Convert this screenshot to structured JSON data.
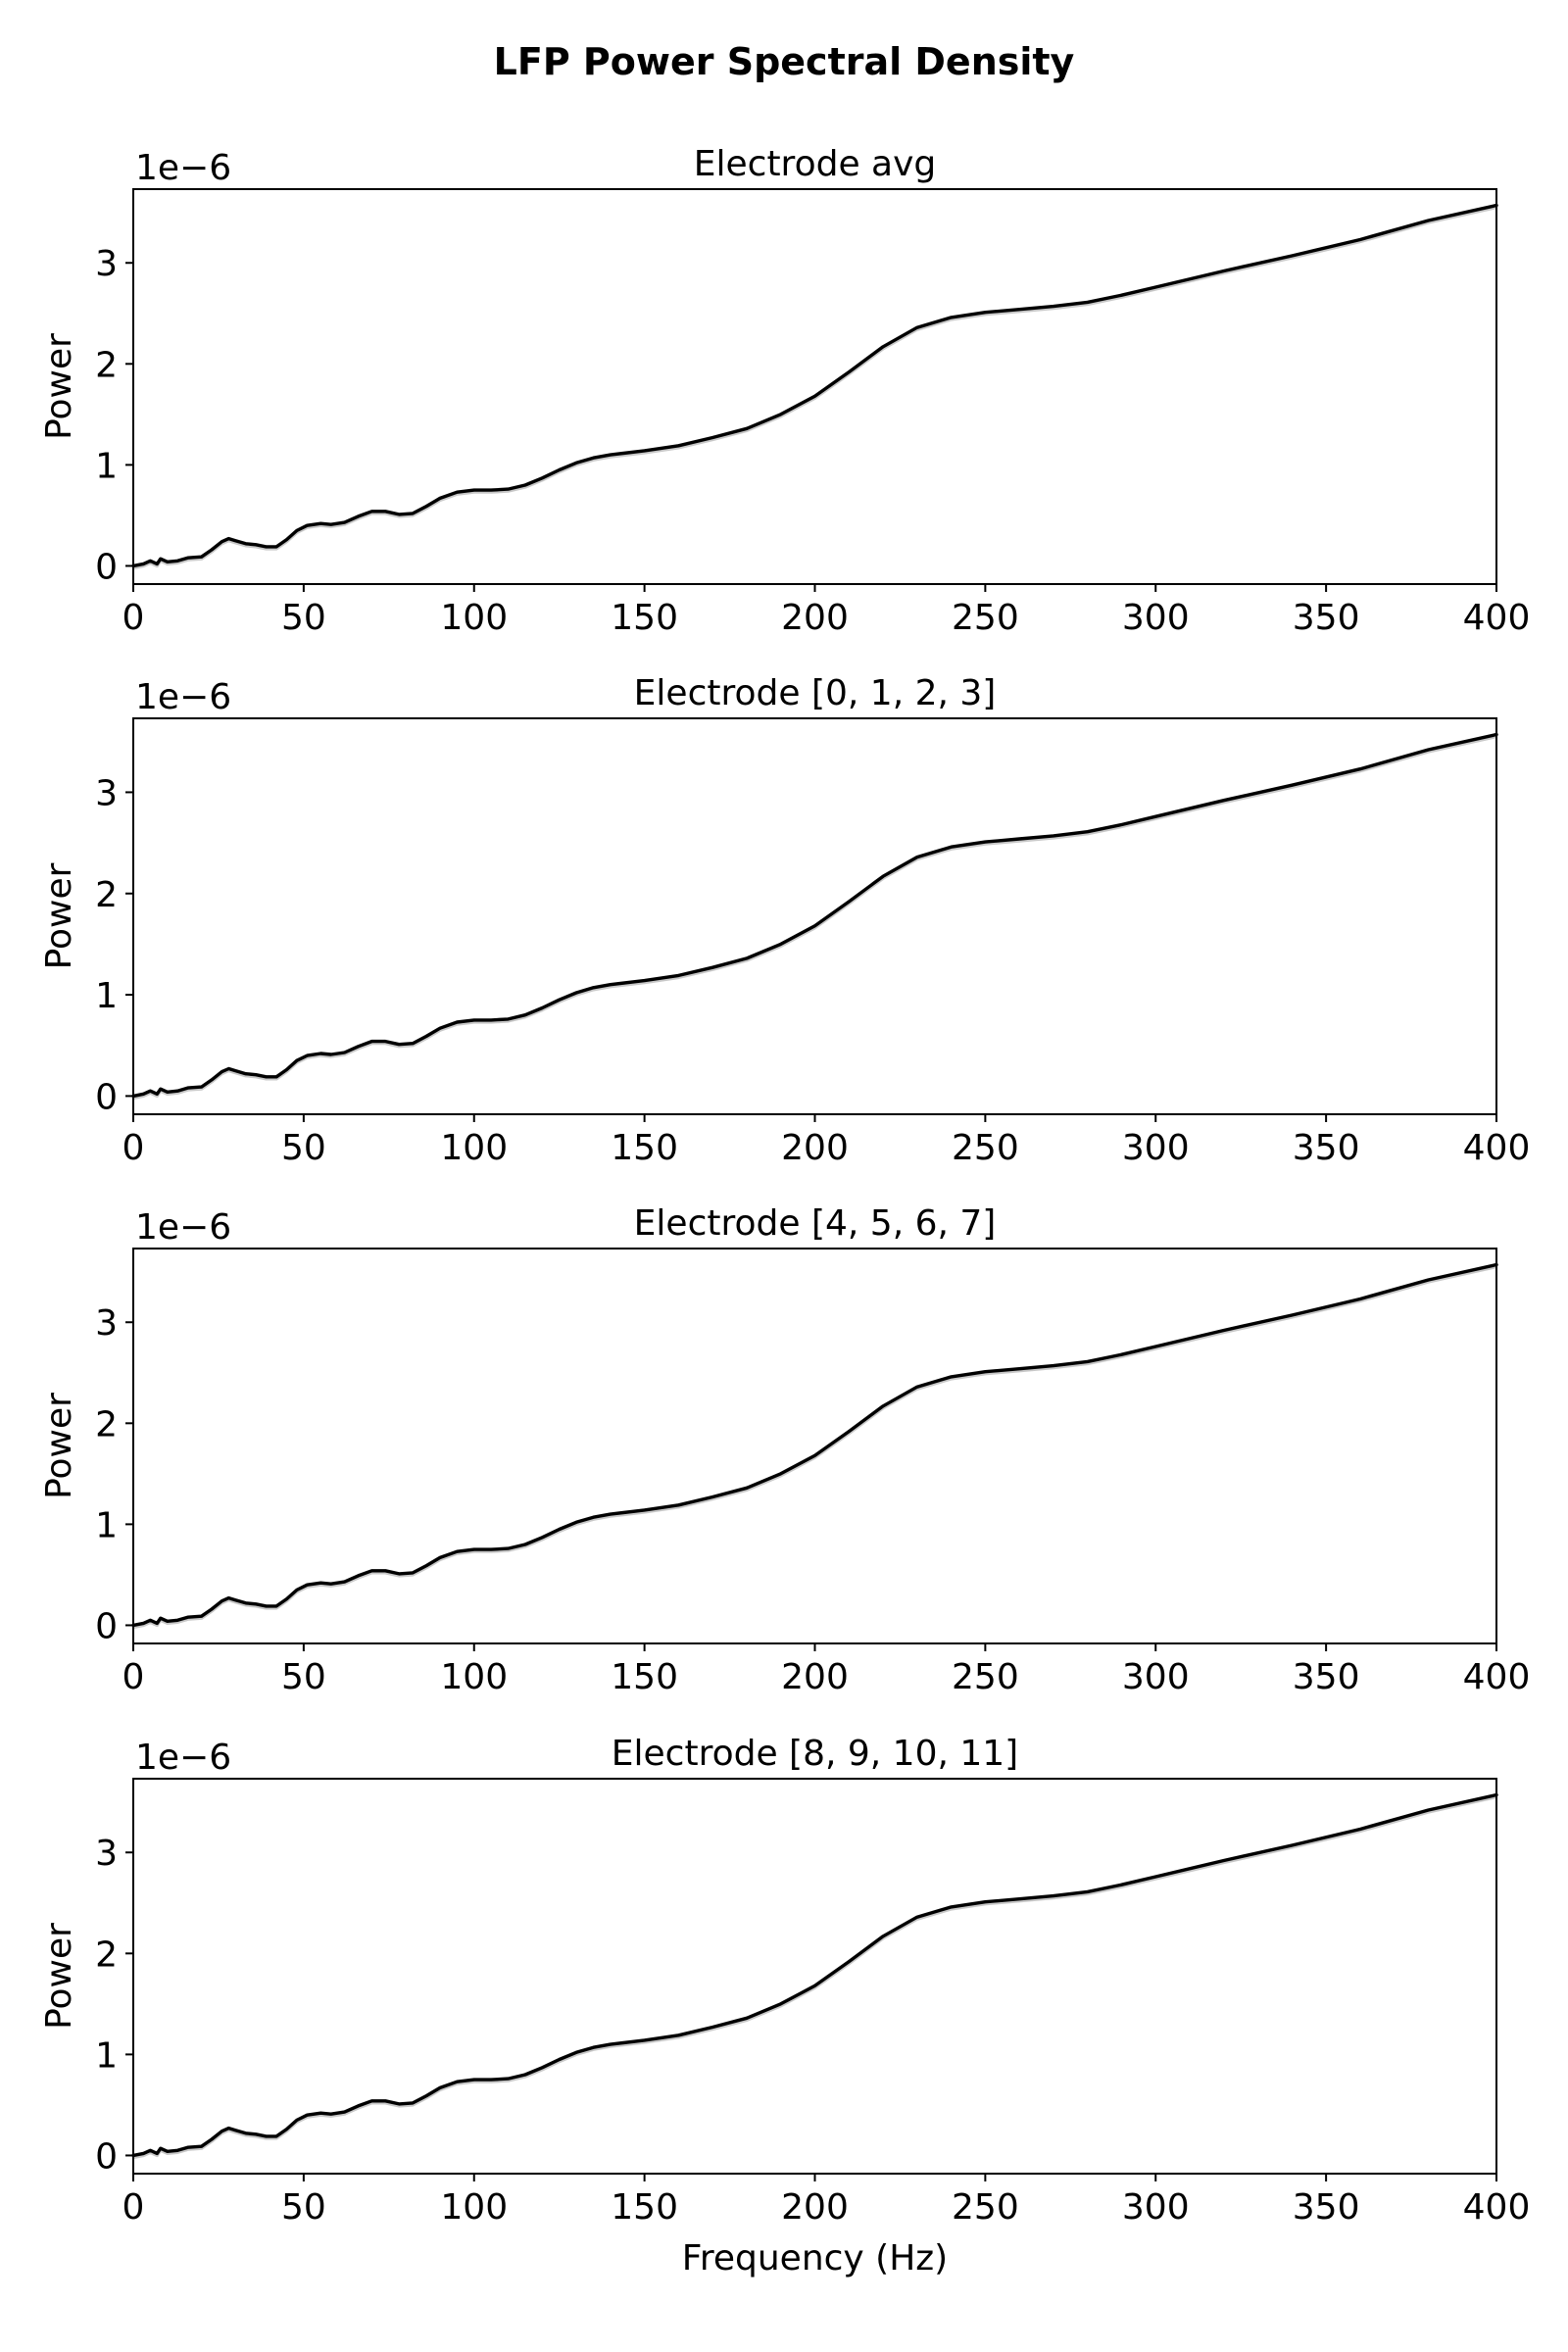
{
  "figure": {
    "title": "LFP Power Spectral Density"
  },
  "chart_data": [
    {
      "type": "line",
      "title": "Electrode avg",
      "xlabel": "",
      "ylabel": "Power",
      "y_offset_label": "1e−6",
      "xlim": [
        0,
        400
      ],
      "ylim": [
        -0.18,
        3.73
      ],
      "x_ticks": [
        "0",
        "50",
        "100",
        "150",
        "200",
        "250",
        "300",
        "350",
        "400"
      ],
      "y_ticks": [
        "0",
        "1",
        "2",
        "3"
      ],
      "grid": false,
      "series": [
        {
          "color": "#000000",
          "x": [
            0,
            3,
            5,
            7,
            8,
            10,
            13,
            16,
            20,
            23,
            26,
            28,
            30,
            33,
            36,
            39,
            42,
            45,
            48,
            51,
            55,
            58,
            62,
            66,
            70,
            74,
            78,
            82,
            86,
            90,
            95,
            100,
            105,
            110,
            115,
            120,
            125,
            130,
            135,
            140,
            150,
            160,
            170,
            180,
            190,
            200,
            210,
            220,
            230,
            240,
            250,
            260,
            270,
            280,
            290,
            300,
            320,
            340,
            360,
            380,
            400
          ],
          "y": [
            0.0,
            0.02,
            0.05,
            0.02,
            0.07,
            0.04,
            0.05,
            0.08,
            0.09,
            0.16,
            0.24,
            0.27,
            0.25,
            0.22,
            0.21,
            0.19,
            0.19,
            0.26,
            0.35,
            0.4,
            0.42,
            0.41,
            0.43,
            0.49,
            0.54,
            0.54,
            0.51,
            0.52,
            0.59,
            0.67,
            0.73,
            0.75,
            0.75,
            0.76,
            0.8,
            0.87,
            0.95,
            1.02,
            1.07,
            1.1,
            1.14,
            1.19,
            1.27,
            1.36,
            1.5,
            1.68,
            1.92,
            2.17,
            2.36,
            2.46,
            2.51,
            2.54,
            2.57,
            2.61,
            2.68,
            2.76,
            2.92,
            3.07,
            3.23,
            3.42,
            3.57
          ]
        }
      ]
    },
    {
      "type": "line",
      "title": "Electrode [0, 1, 2, 3]",
      "xlabel": "",
      "ylabel": "Power",
      "y_offset_label": "1e−6",
      "xlim": [
        0,
        400
      ],
      "ylim": [
        -0.18,
        3.73
      ],
      "x_ticks": [
        "0",
        "50",
        "100",
        "150",
        "200",
        "250",
        "300",
        "350",
        "400"
      ],
      "y_ticks": [
        "0",
        "1",
        "2",
        "3"
      ],
      "grid": false,
      "series": [
        {
          "color": "#000000",
          "x": [
            0,
            3,
            5,
            7,
            8,
            10,
            13,
            16,
            20,
            23,
            26,
            28,
            30,
            33,
            36,
            39,
            42,
            45,
            48,
            51,
            55,
            58,
            62,
            66,
            70,
            74,
            78,
            82,
            86,
            90,
            95,
            100,
            105,
            110,
            115,
            120,
            125,
            130,
            135,
            140,
            150,
            160,
            170,
            180,
            190,
            200,
            210,
            220,
            230,
            240,
            250,
            260,
            270,
            280,
            290,
            300,
            320,
            340,
            360,
            380,
            400
          ],
          "y": [
            0.0,
            0.02,
            0.05,
            0.02,
            0.07,
            0.04,
            0.05,
            0.08,
            0.09,
            0.16,
            0.24,
            0.27,
            0.25,
            0.22,
            0.21,
            0.19,
            0.19,
            0.26,
            0.35,
            0.4,
            0.42,
            0.41,
            0.43,
            0.49,
            0.54,
            0.54,
            0.51,
            0.52,
            0.59,
            0.67,
            0.73,
            0.75,
            0.75,
            0.76,
            0.8,
            0.87,
            0.95,
            1.02,
            1.07,
            1.1,
            1.14,
            1.19,
            1.27,
            1.36,
            1.5,
            1.68,
            1.92,
            2.17,
            2.36,
            2.46,
            2.51,
            2.54,
            2.57,
            2.61,
            2.68,
            2.76,
            2.92,
            3.07,
            3.23,
            3.42,
            3.57
          ]
        }
      ]
    },
    {
      "type": "line",
      "title": "Electrode [4, 5, 6, 7]",
      "xlabel": "",
      "ylabel": "Power",
      "y_offset_label": "1e−6",
      "xlim": [
        0,
        400
      ],
      "ylim": [
        -0.18,
        3.73
      ],
      "x_ticks": [
        "0",
        "50",
        "100",
        "150",
        "200",
        "250",
        "300",
        "350",
        "400"
      ],
      "y_ticks": [
        "0",
        "1",
        "2",
        "3"
      ],
      "grid": false,
      "series": [
        {
          "color": "#000000",
          "x": [
            0,
            3,
            5,
            7,
            8,
            10,
            13,
            16,
            20,
            23,
            26,
            28,
            30,
            33,
            36,
            39,
            42,
            45,
            48,
            51,
            55,
            58,
            62,
            66,
            70,
            74,
            78,
            82,
            86,
            90,
            95,
            100,
            105,
            110,
            115,
            120,
            125,
            130,
            135,
            140,
            150,
            160,
            170,
            180,
            190,
            200,
            210,
            220,
            230,
            240,
            250,
            260,
            270,
            280,
            290,
            300,
            320,
            340,
            360,
            380,
            400
          ],
          "y": [
            0.0,
            0.02,
            0.05,
            0.02,
            0.07,
            0.04,
            0.05,
            0.08,
            0.09,
            0.16,
            0.24,
            0.27,
            0.25,
            0.22,
            0.21,
            0.19,
            0.19,
            0.26,
            0.35,
            0.4,
            0.42,
            0.41,
            0.43,
            0.49,
            0.54,
            0.54,
            0.51,
            0.52,
            0.59,
            0.67,
            0.73,
            0.75,
            0.75,
            0.76,
            0.8,
            0.87,
            0.95,
            1.02,
            1.07,
            1.1,
            1.14,
            1.19,
            1.27,
            1.36,
            1.5,
            1.68,
            1.92,
            2.17,
            2.36,
            2.46,
            2.51,
            2.54,
            2.57,
            2.61,
            2.68,
            2.76,
            2.92,
            3.07,
            3.23,
            3.42,
            3.57
          ]
        }
      ]
    },
    {
      "type": "line",
      "title": "Electrode [8, 9, 10, 11]",
      "xlabel": "Frequency (Hz)",
      "ylabel": "Power",
      "y_offset_label": "1e−6",
      "xlim": [
        0,
        400
      ],
      "ylim": [
        -0.18,
        3.73
      ],
      "x_ticks": [
        "0",
        "50",
        "100",
        "150",
        "200",
        "250",
        "300",
        "350",
        "400"
      ],
      "y_ticks": [
        "0",
        "1",
        "2",
        "3"
      ],
      "grid": false,
      "series": [
        {
          "color": "#000000",
          "x": [
            0,
            3,
            5,
            7,
            8,
            10,
            13,
            16,
            20,
            23,
            26,
            28,
            30,
            33,
            36,
            39,
            42,
            45,
            48,
            51,
            55,
            58,
            62,
            66,
            70,
            74,
            78,
            82,
            86,
            90,
            95,
            100,
            105,
            110,
            115,
            120,
            125,
            130,
            135,
            140,
            150,
            160,
            170,
            180,
            190,
            200,
            210,
            220,
            230,
            240,
            250,
            260,
            270,
            280,
            290,
            300,
            320,
            340,
            360,
            380,
            400
          ],
          "y": [
            0.0,
            0.02,
            0.05,
            0.02,
            0.07,
            0.04,
            0.05,
            0.08,
            0.09,
            0.16,
            0.24,
            0.27,
            0.25,
            0.22,
            0.21,
            0.19,
            0.19,
            0.26,
            0.35,
            0.4,
            0.42,
            0.41,
            0.43,
            0.49,
            0.54,
            0.54,
            0.51,
            0.52,
            0.59,
            0.67,
            0.73,
            0.75,
            0.75,
            0.76,
            0.8,
            0.87,
            0.95,
            1.02,
            1.07,
            1.1,
            1.14,
            1.19,
            1.27,
            1.36,
            1.5,
            1.68,
            1.92,
            2.17,
            2.36,
            2.46,
            2.51,
            2.54,
            2.57,
            2.61,
            2.68,
            2.76,
            2.92,
            3.07,
            3.23,
            3.42,
            3.57
          ]
        }
      ]
    }
  ]
}
